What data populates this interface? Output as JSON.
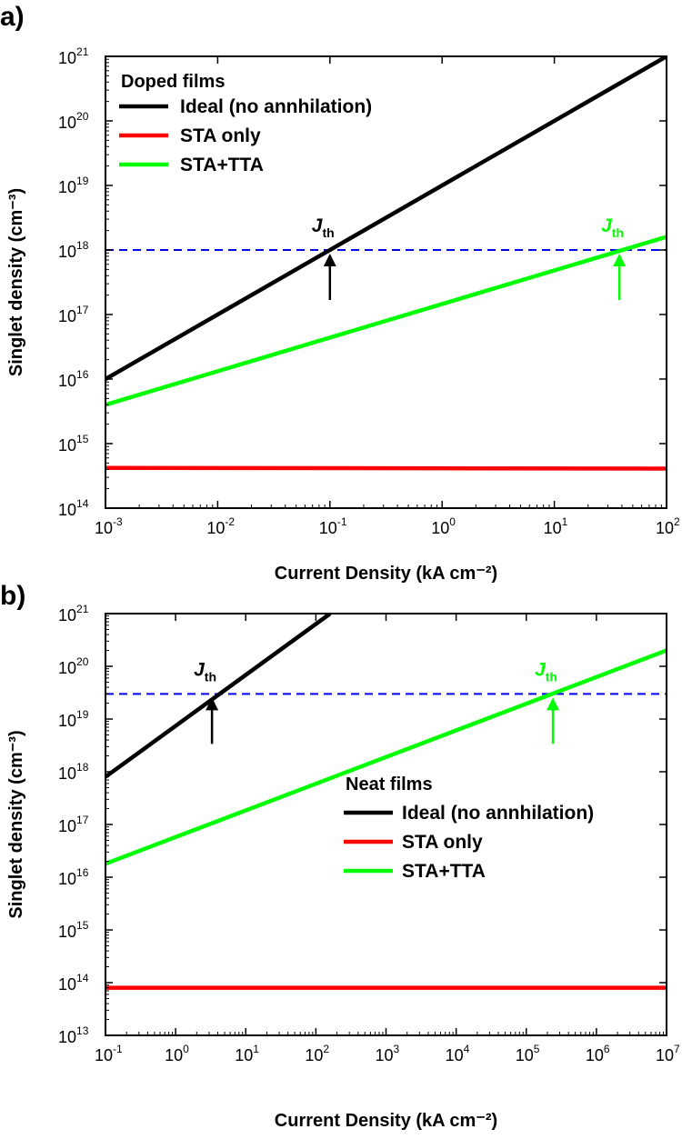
{
  "chart_data": [
    {
      "panel_label": "a)",
      "type": "line",
      "xlabel": "Current Density (kA cm⁻²)",
      "ylabel": "Singlet density (cm⁻³)",
      "x_scale": "log",
      "y_scale": "log",
      "xlim": [
        0.001,
        100
      ],
      "ylim": [
        100000000000000.0,
        1e+21
      ],
      "x_ticks": [
        {
          "base": "10",
          "exp": "-3"
        },
        {
          "base": "10",
          "exp": "-2"
        },
        {
          "base": "10",
          "exp": "-1"
        },
        {
          "base": "10",
          "exp": "0"
        },
        {
          "base": "10",
          "exp": "1"
        },
        {
          "base": "10",
          "exp": "2"
        }
      ],
      "y_ticks": [
        {
          "base": "10",
          "exp": "14"
        },
        {
          "base": "10",
          "exp": "15"
        },
        {
          "base": "10",
          "exp": "16"
        },
        {
          "base": "10",
          "exp": "17"
        },
        {
          "base": "10",
          "exp": "18"
        },
        {
          "base": "10",
          "exp": "19"
        },
        {
          "base": "10",
          "exp": "20"
        },
        {
          "base": "10",
          "exp": "21"
        }
      ],
      "legend": {
        "title": "Doped films",
        "position": "top-left",
        "entries": [
          "Ideal (no annhilation)",
          "STA only",
          "STA+TTA"
        ]
      },
      "series": [
        {
          "name": "Ideal (no annhilation)",
          "color": "#000000",
          "x": [
            0.001,
            100
          ],
          "y": [
            1e+16,
            1e+21
          ]
        },
        {
          "name": "STA only",
          "color": "#ff0000",
          "x": [
            0.001,
            100
          ],
          "y": [
            420000000000000.0,
            410000000000000.0
          ]
        },
        {
          "name": "STA+TTA",
          "color": "#00ff00",
          "x": [
            0.001,
            100
          ],
          "y": [
            4000000000000000.0,
            1.6e+18
          ]
        }
      ],
      "threshold_line": {
        "y": 1e+18,
        "color": "#0000ee",
        "style": "dashed"
      },
      "annotations": [
        {
          "text": "J",
          "sub": "th",
          "x": 0.1,
          "color": "#000000"
        },
        {
          "text": "J",
          "sub": "th",
          "x": 38,
          "color": "#00ff00"
        }
      ]
    },
    {
      "panel_label": "b)",
      "type": "line",
      "xlabel": "Current Density (kA cm⁻²)",
      "ylabel": "Singlet density (cm⁻³)",
      "x_scale": "log",
      "y_scale": "log",
      "xlim": [
        0.1,
        10000000.0
      ],
      "ylim": [
        10000000000000.0,
        1e+21
      ],
      "x_ticks": [
        {
          "base": "10",
          "exp": "-1"
        },
        {
          "base": "10",
          "exp": "0"
        },
        {
          "base": "10",
          "exp": "1"
        },
        {
          "base": "10",
          "exp": "2"
        },
        {
          "base": "10",
          "exp": "3"
        },
        {
          "base": "10",
          "exp": "4"
        },
        {
          "base": "10",
          "exp": "5"
        },
        {
          "base": "10",
          "exp": "6"
        },
        {
          "base": "10",
          "exp": "7"
        }
      ],
      "y_ticks": [
        {
          "base": "10",
          "exp": "13"
        },
        {
          "base": "10",
          "exp": "14"
        },
        {
          "base": "10",
          "exp": "15"
        },
        {
          "base": "10",
          "exp": "16"
        },
        {
          "base": "10",
          "exp": "17"
        },
        {
          "base": "10",
          "exp": "18"
        },
        {
          "base": "10",
          "exp": "19"
        },
        {
          "base": "10",
          "exp": "20"
        },
        {
          "base": "10",
          "exp": "21"
        }
      ],
      "legend": {
        "title": "Neat films",
        "position": "center-right",
        "entries": [
          "Ideal (no annhilation)",
          "STA only",
          "STA+TTA"
        ]
      },
      "series": [
        {
          "name": "Ideal (no annhilation)",
          "color": "#000000",
          "x": [
            0.1,
            160
          ],
          "y": [
            8e+17,
            1e+21
          ]
        },
        {
          "name": "STA only",
          "color": "#ff0000",
          "x": [
            0.1,
            10000000.0
          ],
          "y": [
            80000000000000.0,
            80000000000000.0
          ]
        },
        {
          "name": "STA+TTA",
          "color": "#00ff00",
          "x": [
            0.1,
            10000000.0
          ],
          "y": [
            1.8e+16,
            2e+20
          ]
        }
      ],
      "threshold_line": {
        "y": 3e+19,
        "color": "#0000ee",
        "style": "dashed"
      },
      "annotations": [
        {
          "text": "J",
          "sub": "th",
          "x": 3.3,
          "color": "#000000"
        },
        {
          "text": "J",
          "sub": "th",
          "x": 240000,
          "color": "#00ff00"
        }
      ]
    }
  ]
}
